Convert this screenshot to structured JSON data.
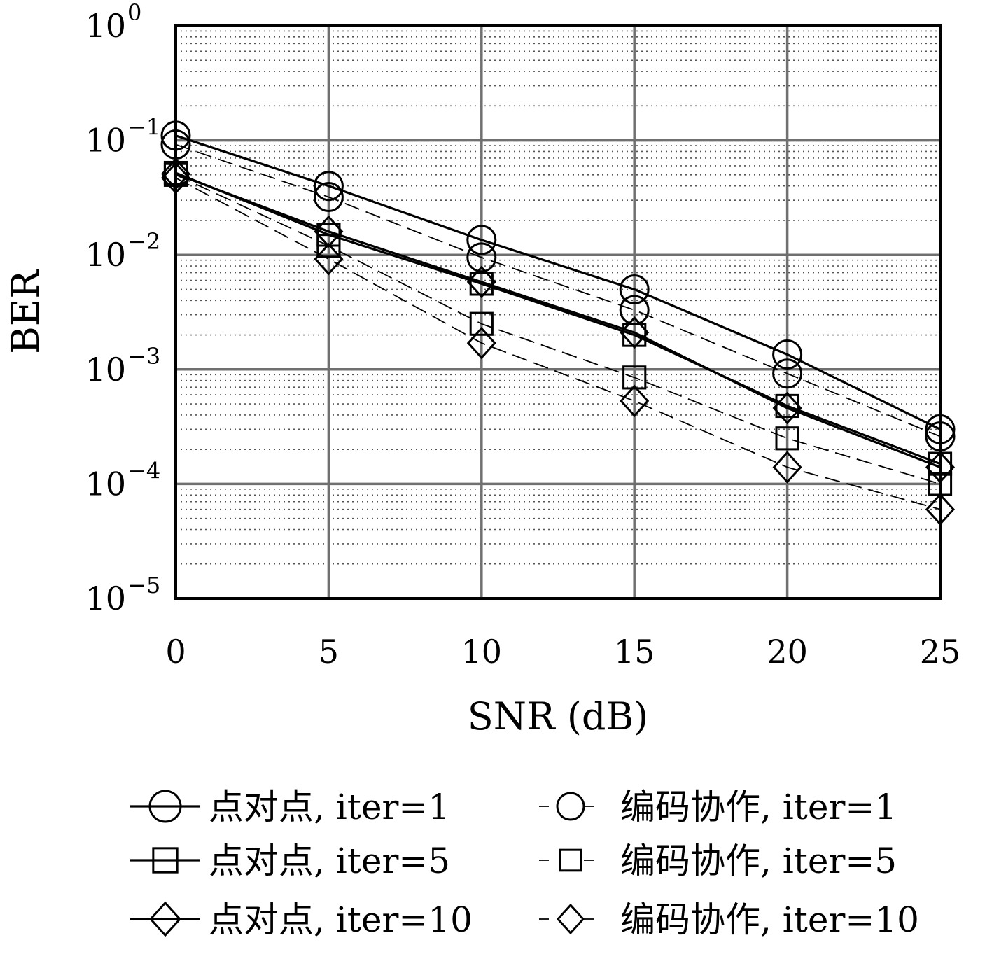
{
  "chart_data": {
    "type": "line",
    "xlabel": "SNR (dB)",
    "ylabel": "BER",
    "x": [
      0,
      5,
      10,
      15,
      20,
      25
    ],
    "xlim": [
      0,
      25
    ],
    "ylim": [
      1e-05,
      1
    ],
    "yscale": "log",
    "grid": true,
    "minor_grid": true,
    "legend_position": "bottom",
    "xticks": [
      "0",
      "5",
      "10",
      "15",
      "20",
      "25"
    ],
    "yticks": [
      {
        "value": 1,
        "label": "10",
        "exp": "0"
      },
      {
        "value": 0.1,
        "label": "10",
        "exp": "−1"
      },
      {
        "value": 0.01,
        "label": "10",
        "exp": "−2"
      },
      {
        "value": 0.001,
        "label": "10",
        "exp": "−3"
      },
      {
        "value": 0.0001,
        "label": "10",
        "exp": "−4"
      },
      {
        "value": 1e-05,
        "label": "10",
        "exp": "−5"
      }
    ],
    "series": [
      {
        "name": "点对点, iter=1",
        "marker": "circle",
        "line": "solid",
        "values": [
          0.11,
          0.04,
          0.0135,
          0.005,
          0.00135,
          0.0003
        ]
      },
      {
        "name": "编码协作, iter=1",
        "marker": "circle",
        "line": "dashed",
        "values": [
          0.092,
          0.032,
          0.0095,
          0.0033,
          0.00092,
          0.00026
        ]
      },
      {
        "name": "点对点, iter=5",
        "marker": "square",
        "line": "solid",
        "values": [
          0.052,
          0.015,
          0.0056,
          0.002,
          0.00048,
          0.00015
        ]
      },
      {
        "name": "编码协作, iter=5",
        "marker": "square",
        "line": "dashed",
        "values": [
          0.05,
          0.012,
          0.0025,
          0.00085,
          0.00025,
          0.0001
        ]
      },
      {
        "name": "点对点, iter=10",
        "marker": "diamond",
        "line": "solid",
        "values": [
          0.051,
          0.016,
          0.0058,
          0.0021,
          0.00046,
          0.00014
        ]
      },
      {
        "name": "编码协作, iter=10",
        "marker": "diamond",
        "line": "dashed",
        "values": [
          0.047,
          0.0092,
          0.0017,
          0.00053,
          0.00014,
          6e-05
        ]
      }
    ]
  }
}
